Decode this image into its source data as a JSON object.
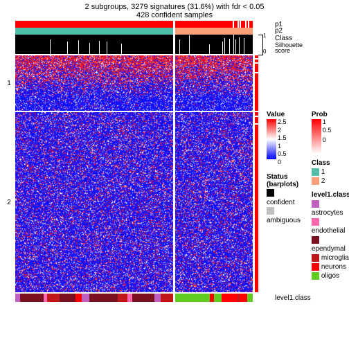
{
  "titles": {
    "line1": "2 subgroups, 3279 signatures (31.6%) with fdr < 0.05",
    "line2": "428 confident samples"
  },
  "layout": {
    "left_block_width": 228,
    "right_block_width": 112,
    "row1_height": 80,
    "row2_height": 260,
    "gap": 2
  },
  "annotation_labels": {
    "p1": "p1",
    "p2": "p2",
    "class": "Class",
    "silhouette": "Silhouette\nscore",
    "level1": "level1.class"
  },
  "row_labels": {
    "g1": "1",
    "g2": "2"
  },
  "colors": {
    "p1": "#ff0000",
    "p2_group1": "#4fbfa8",
    "p2_group2": "#f7a07a",
    "silhouette_bg": "#000000",
    "heat_low": "#0000ff",
    "heat_mid": "#ffffff",
    "heat_high": "#ff0000",
    "status_confident": "#000000",
    "status_ambiguous": "#bfbfbf",
    "class1": "#4fbfa8",
    "class2": "#f7a07a",
    "l1_astrocytes": "#c060c0",
    "l1_endothelial": "#ff66b0",
    "l1_ependymal": "#7a1020",
    "l1_microglia": "#c01818",
    "l1_neurons": "#ff0000",
    "l1_oligos": "#60cc20",
    "background": "#ffffff"
  },
  "p1_white_ticks_right": [
    0.74,
    0.8,
    0.83,
    0.9,
    0.94
  ],
  "silhouette_scale": {
    "min": 0,
    "max": 1,
    "ticks": [
      "1",
      "0.5",
      "0"
    ]
  },
  "silhouette_drops_left": [
    0.22,
    0.33,
    0.4,
    0.47,
    0.53,
    0.58,
    0.67
  ],
  "silhouette_drops_right": [
    0.05,
    0.18,
    0.44,
    0.61,
    0.63,
    0.7,
    0.75,
    0.78,
    0.82,
    0.88
  ],
  "heatmap": {
    "type": "heatmap",
    "noise_params": {
      "row1_red_bias": 0.7,
      "row2_blue_bias": 0.85,
      "white_speckle": 0.1
    },
    "value_legend": {
      "ticks": [
        "2.5",
        "2",
        "1.5",
        "1",
        "0.5",
        "0"
      ],
      "gradient": [
        "#ff0000",
        "#ffffff",
        "#0000ff"
      ]
    }
  },
  "prob_legend": {
    "title": "Prob",
    "ticks": [
      "1",
      "0.5",
      "0"
    ]
  },
  "status_legend": {
    "title": "Status (barplots)",
    "items": [
      {
        "label": "confident",
        "color": "#000000"
      },
      {
        "label": "ambiguous",
        "color": "#bfbfbf"
      }
    ]
  },
  "class_legend": {
    "title": "Class",
    "items": [
      {
        "label": "1",
        "color": "#4fbfa8"
      },
      {
        "label": "2",
        "color": "#f7a07a"
      }
    ]
  },
  "level1_legend": {
    "title": "level1.class",
    "items": [
      {
        "label": "astrocytes",
        "color": "#c060c0"
      },
      {
        "label": "endothelial",
        "color": "#ff66b0"
      },
      {
        "label": "ependymal",
        "color": "#7a1020"
      },
      {
        "label": "microglia",
        "color": "#c01818"
      },
      {
        "label": "neurons",
        "color": "#ff0000"
      },
      {
        "label": "oligos",
        "color": "#60cc20"
      }
    ]
  },
  "bottom_annotation": {
    "left_mix": [
      {
        "c": "#c060c0",
        "w": 0.03
      },
      {
        "c": "#7a1020",
        "w": 0.15
      },
      {
        "c": "#ff66b0",
        "w": 0.02
      },
      {
        "c": "#c01818",
        "w": 0.08
      },
      {
        "c": "#7a1020",
        "w": 0.1
      },
      {
        "c": "#ff0000",
        "w": 0.04
      },
      {
        "c": "#c060c0",
        "w": 0.05
      },
      {
        "c": "#7a1020",
        "w": 0.18
      },
      {
        "c": "#c01818",
        "w": 0.06
      },
      {
        "c": "#ff66b0",
        "w": 0.03
      },
      {
        "c": "#7a1020",
        "w": 0.14
      },
      {
        "c": "#c060c0",
        "w": 0.04
      },
      {
        "c": "#c01818",
        "w": 0.08
      }
    ],
    "right_mix": [
      {
        "c": "#60cc20",
        "w": 0.45
      },
      {
        "c": "#ff0000",
        "w": 0.05
      },
      {
        "c": "#60cc20",
        "w": 0.1
      },
      {
        "c": "#ff0000",
        "w": 0.2
      },
      {
        "c": "#c01818",
        "w": 0.03
      },
      {
        "c": "#ff0000",
        "w": 0.1
      },
      {
        "c": "#60cc20",
        "w": 0.07
      }
    ]
  },
  "side_white_marks": {
    "row1": [
      0.05,
      0.12,
      0.3
    ],
    "row2": [
      0.02,
      0.06
    ]
  }
}
